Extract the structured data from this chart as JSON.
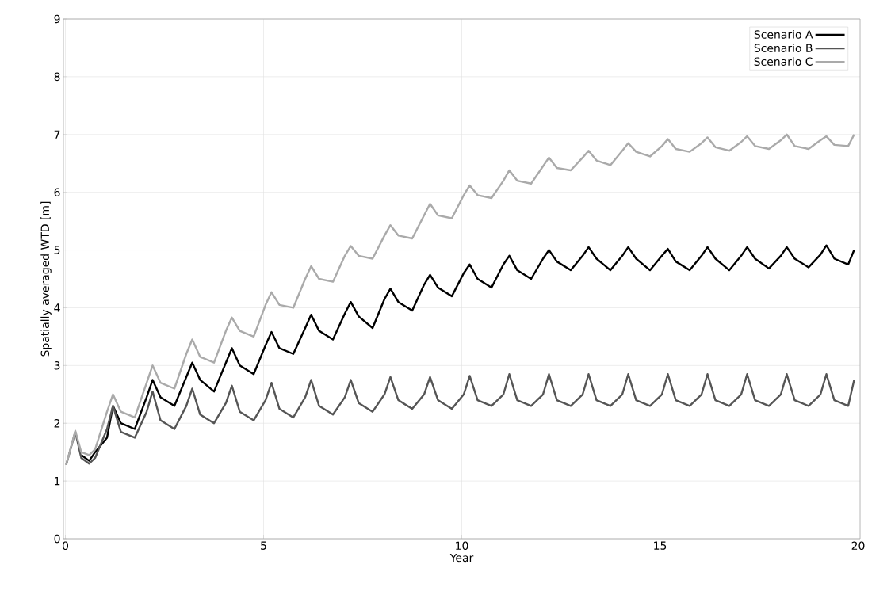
{
  "chart_data": {
    "type": "line",
    "xlabel": "Year",
    "ylabel": "Spatially averaged WTD [m]",
    "x": [
      0.02,
      0.25,
      0.4,
      0.6,
      0.75,
      1.05,
      1.2,
      1.4,
      1.75,
      2.05,
      2.2,
      2.4,
      2.75,
      3.05,
      3.2,
      3.4,
      3.75,
      4.05,
      4.2,
      4.4,
      4.75,
      5.05,
      5.2,
      5.4,
      5.75,
      6.05,
      6.2,
      6.4,
      6.75,
      7.05,
      7.2,
      7.4,
      7.75,
      8.05,
      8.2,
      8.4,
      8.75,
      9.05,
      9.2,
      9.4,
      9.75,
      10.05,
      10.2,
      10.4,
      10.75,
      11.05,
      11.2,
      11.4,
      11.75,
      12.05,
      12.2,
      12.4,
      12.75,
      13.05,
      13.2,
      13.4,
      13.75,
      14.05,
      14.2,
      14.4,
      14.75,
      15.05,
      15.2,
      15.4,
      15.75,
      16.05,
      16.2,
      16.4,
      16.75,
      17.05,
      17.2,
      17.4,
      17.75,
      18.05,
      18.2,
      18.4,
      18.75,
      19.05,
      19.2,
      19.4,
      19.75,
      19.9
    ],
    "series": [
      {
        "name": "Scenario A",
        "color": "#000000",
        "values": [
          null,
          null,
          1.45,
          1.35,
          1.5,
          1.75,
          2.3,
          2.0,
          1.9,
          2.45,
          2.75,
          2.45,
          2.3,
          2.8,
          3.05,
          2.75,
          2.55,
          3.05,
          3.3,
          3.0,
          2.85,
          3.35,
          3.58,
          3.3,
          3.2,
          3.65,
          3.88,
          3.6,
          3.45,
          3.9,
          4.1,
          3.85,
          3.65,
          4.15,
          4.33,
          4.1,
          3.95,
          4.4,
          4.57,
          4.35,
          4.2,
          4.6,
          4.75,
          4.5,
          4.35,
          4.75,
          4.9,
          4.65,
          4.5,
          4.85,
          5.0,
          4.8,
          4.65,
          4.9,
          5.05,
          4.85,
          4.65,
          4.9,
          5.05,
          4.85,
          4.65,
          4.9,
          5.02,
          4.8,
          4.65,
          4.9,
          5.05,
          4.85,
          4.65,
          4.9,
          5.05,
          4.85,
          4.68,
          4.9,
          5.05,
          4.85,
          4.7,
          4.92,
          5.08,
          4.85,
          4.75,
          5.0
        ]
      },
      {
        "name": "Scenario B",
        "color": "#555555",
        "values": [
          1.28,
          1.85,
          1.4,
          1.3,
          1.4,
          1.9,
          2.3,
          1.85,
          1.75,
          2.2,
          2.55,
          2.05,
          1.9,
          2.3,
          2.6,
          2.15,
          2.0,
          2.35,
          2.65,
          2.2,
          2.05,
          2.4,
          2.7,
          2.25,
          2.1,
          2.45,
          2.75,
          2.3,
          2.15,
          2.45,
          2.75,
          2.35,
          2.2,
          2.5,
          2.8,
          2.4,
          2.25,
          2.5,
          2.8,
          2.4,
          2.25,
          2.5,
          2.82,
          2.4,
          2.3,
          2.5,
          2.85,
          2.4,
          2.3,
          2.5,
          2.85,
          2.4,
          2.3,
          2.5,
          2.85,
          2.4,
          2.3,
          2.5,
          2.85,
          2.4,
          2.3,
          2.5,
          2.85,
          2.4,
          2.3,
          2.5,
          2.85,
          2.4,
          2.3,
          2.5,
          2.85,
          2.4,
          2.3,
          2.5,
          2.85,
          2.4,
          2.3,
          2.5,
          2.85,
          2.4,
          2.3,
          2.75
        ]
      },
      {
        "name": "Scenario C",
        "color": "#aaaaaa",
        "values": [
          1.28,
          1.87,
          1.5,
          1.45,
          1.55,
          2.2,
          2.5,
          2.2,
          2.1,
          2.7,
          3.0,
          2.7,
          2.6,
          3.2,
          3.45,
          3.15,
          3.05,
          3.6,
          3.83,
          3.6,
          3.5,
          4.05,
          4.27,
          4.05,
          4.0,
          4.5,
          4.72,
          4.5,
          4.45,
          4.9,
          5.07,
          4.9,
          4.85,
          5.25,
          5.43,
          5.25,
          5.2,
          5.6,
          5.8,
          5.6,
          5.55,
          5.95,
          6.12,
          5.95,
          5.9,
          6.2,
          6.38,
          6.2,
          6.15,
          6.45,
          6.6,
          6.42,
          6.38,
          6.6,
          6.72,
          6.55,
          6.47,
          6.72,
          6.85,
          6.7,
          6.62,
          6.8,
          6.92,
          6.75,
          6.7,
          6.85,
          6.95,
          6.78,
          6.72,
          6.87,
          6.97,
          6.8,
          6.75,
          6.9,
          7.0,
          6.8,
          6.75,
          6.9,
          6.97,
          6.82,
          6.8,
          7.0
        ]
      }
    ],
    "xlim": [
      -0.05,
      20.05
    ],
    "ylim": [
      0,
      9
    ],
    "xticks": [
      0,
      5,
      10,
      15,
      20
    ],
    "yticks": [
      0,
      1,
      2,
      3,
      4,
      5,
      6,
      7,
      8,
      9
    ],
    "grid": true,
    "legend": "top right"
  }
}
